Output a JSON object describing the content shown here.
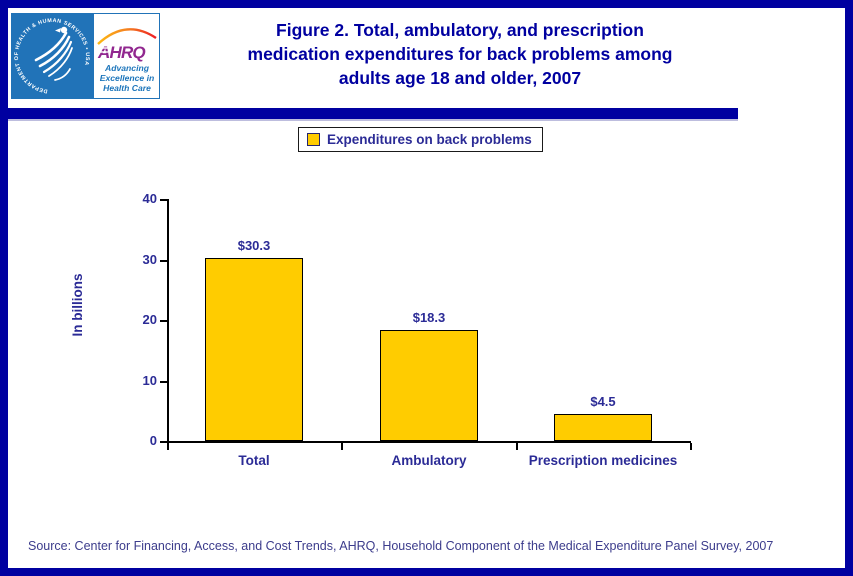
{
  "page": {
    "border_color": "#0000A0",
    "background_color": "#FFFFFF"
  },
  "logo": {
    "hhs_ring_text": "DEPARTMENT OF HEALTH & HUMAN SERVICES • USA",
    "ahrq_acronym": "AHRQ",
    "ahrq_tagline_lines": [
      "Advancing",
      "Excellence in",
      "Health Care"
    ],
    "hhs_blue": "#2173B8",
    "ahrq_purple": "#91278F",
    "tagline_blue": "#1C75BB"
  },
  "header": {
    "title_lines": [
      "Figure 2. Total, ambulatory, and prescription",
      "medication expenditures for back problems among",
      "adults age 18 and older, 2007"
    ],
    "title_color": "#0000A0"
  },
  "legend": {
    "label": "Expenditures on back problems",
    "swatch_color": "#FFCC00"
  },
  "chart_data": {
    "type": "bar",
    "title": "Figure 2. Total, ambulatory, and prescription medication expenditures for back problems among adults age 18 and older, 2007",
    "categories": [
      "Total",
      "Ambulatory",
      "Prescription medicines"
    ],
    "values": [
      30.3,
      18.3,
      4.5
    ],
    "value_labels": [
      "$30.3",
      "$18.3",
      "$4.5"
    ],
    "series_name": "Expenditures on back problems",
    "xlabel": "",
    "ylabel": "In billions",
    "ylim": [
      0,
      40
    ],
    "yticks": [
      0,
      10,
      20,
      30,
      40
    ],
    "bar_color": "#FFCC00",
    "grid": false,
    "legend_position": "top-center"
  },
  "footer": {
    "source": "Source: Center for Financing, Access, and Cost Trends, AHRQ, Household Component of the Medical Expenditure Panel Survey, 2007"
  }
}
